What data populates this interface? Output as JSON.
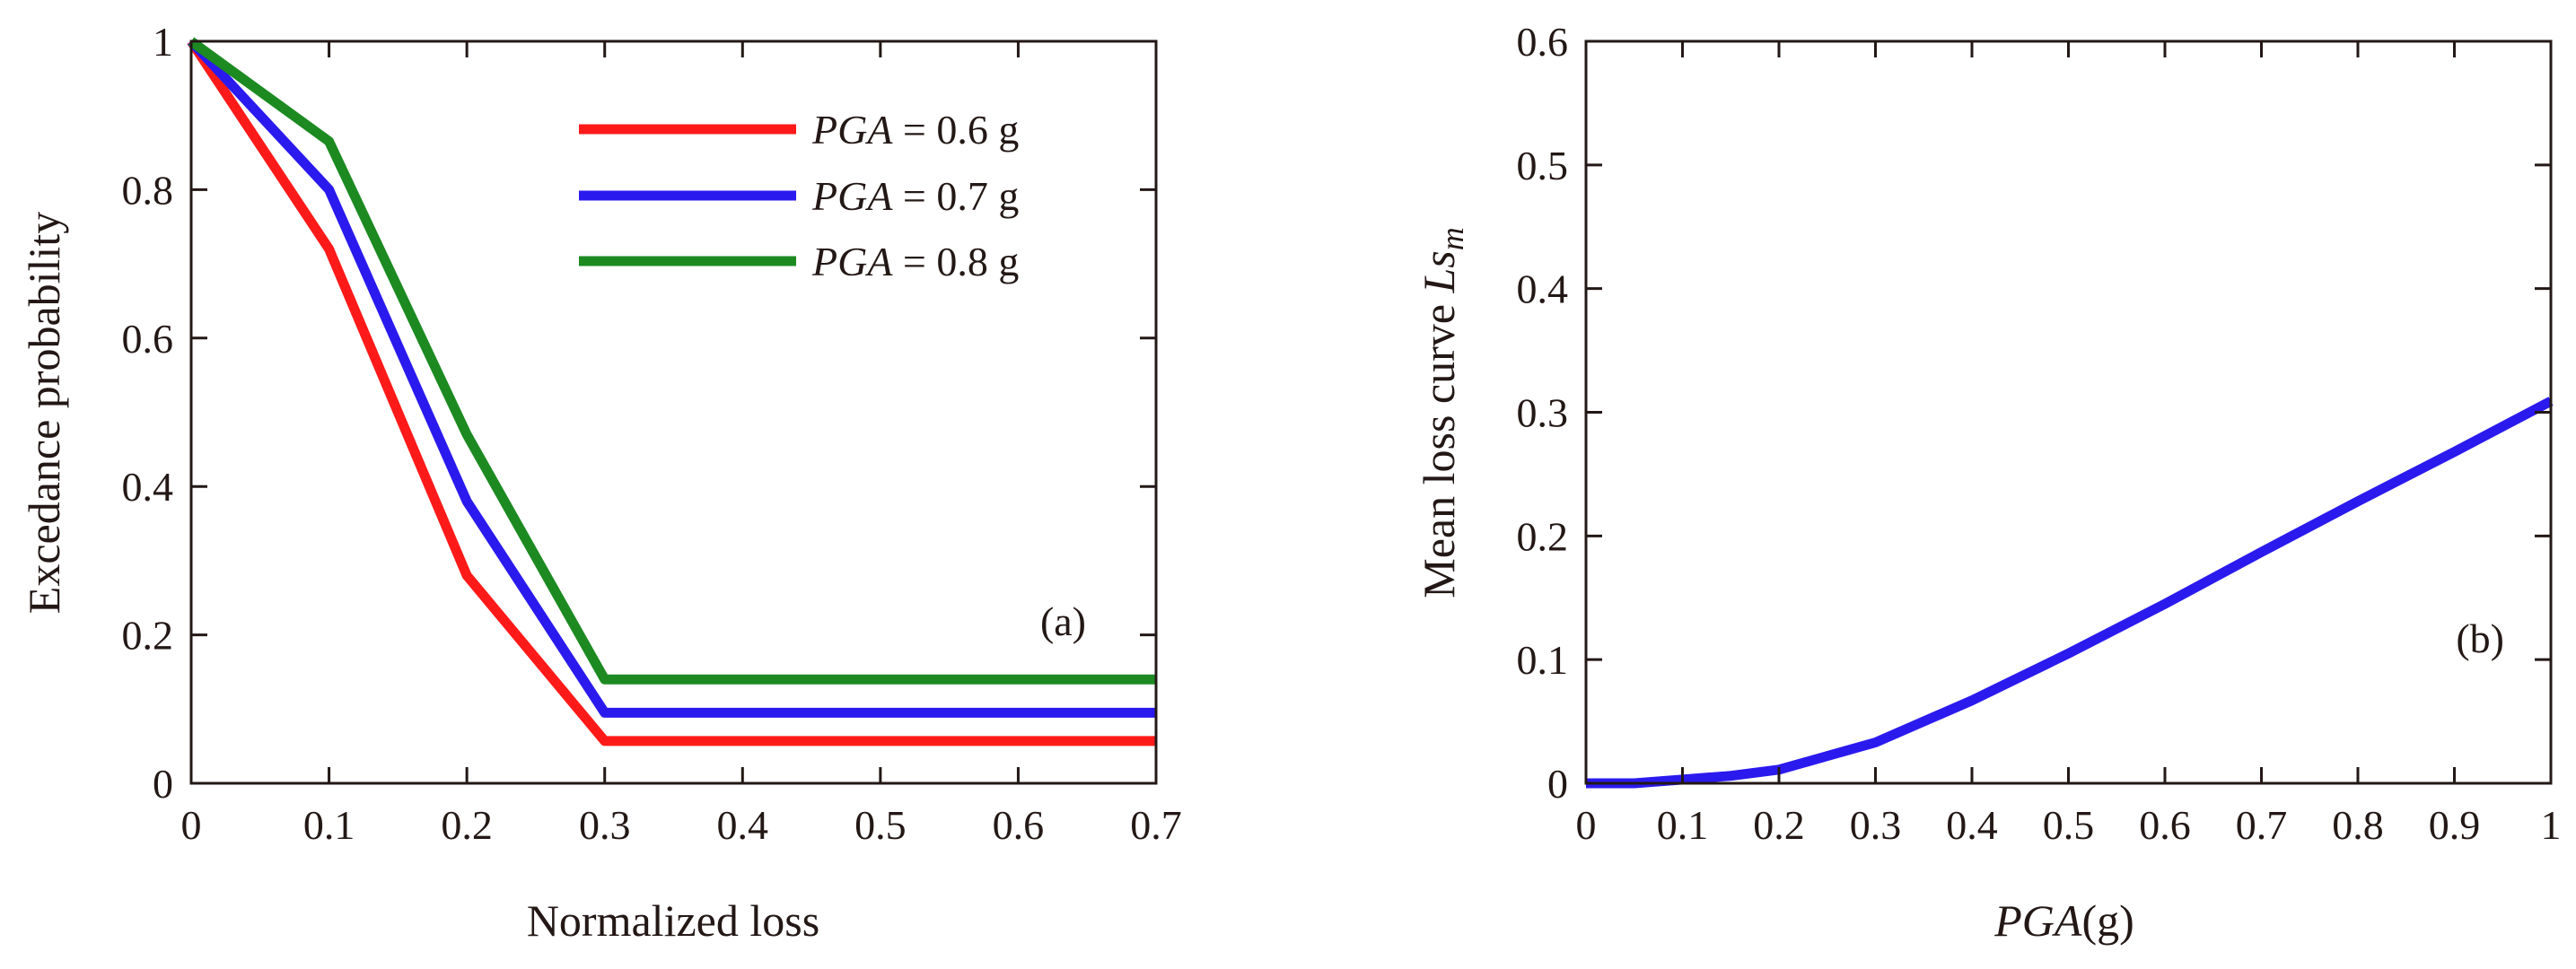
{
  "chart_data": [
    {
      "panel": "(a)",
      "type": "line",
      "title": "",
      "xlabel": "Normalized loss",
      "ylabel": "Excedance probability",
      "xlim": [
        0,
        0.7
      ],
      "ylim": [
        0,
        1
      ],
      "xticks": [
        "0",
        "0.1",
        "0.2",
        "0.3",
        "0.4",
        "0.5",
        "0.6",
        "0.7"
      ],
      "yticks": [
        "0",
        "0.2",
        "0.4",
        "0.6",
        "0.8",
        "1"
      ],
      "x": [
        0,
        0.1,
        0.2,
        0.3,
        0.7
      ],
      "legend_position": "top-right",
      "series": [
        {
          "name": "PGA = 0.6 g",
          "name_italic": "PGA",
          "name_rest": " = 0.6 g",
          "color": "#ff1a1a",
          "values": [
            1.0,
            0.72,
            0.28,
            0.057,
            0.057
          ]
        },
        {
          "name": "PGA = 0.7 g",
          "name_italic": "PGA",
          "name_rest": " = 0.7 g",
          "color": "#2b1aee",
          "values": [
            1.0,
            0.8,
            0.38,
            0.095,
            0.095
          ]
        },
        {
          "name": "PGA = 0.8 g",
          "name_italic": "PGA",
          "name_rest": " = 0.8 g",
          "color": "#1c8a21",
          "values": [
            1.0,
            0.865,
            0.47,
            0.14,
            0.14
          ]
        }
      ]
    },
    {
      "panel": "(b)",
      "type": "line",
      "title": "",
      "xlabel_italic": "PGA",
      "xlabel_rest": "(g)",
      "ylabel_plain": "Mean loss curve ",
      "ylabel_italic": "Ls",
      "ylabel_sub": "m",
      "xlim": [
        0,
        1
      ],
      "ylim": [
        0,
        0.6
      ],
      "xticks": [
        "0",
        "0.1",
        "0.2",
        "0.3",
        "0.4",
        "0.5",
        "0.6",
        "0.7",
        "0.8",
        "0.9",
        "1"
      ],
      "yticks": [
        "0",
        "0.1",
        "0.2",
        "0.3",
        "0.4",
        "0.5",
        "0.6"
      ],
      "series": [
        {
          "name": "Mean loss curve",
          "color": "#2b1aee",
          "x": [
            0,
            0.05,
            0.1,
            0.15,
            0.2,
            0.3,
            0.4,
            0.5,
            0.6,
            0.7,
            0.8,
            0.9,
            1.0
          ],
          "values": [
            0,
            0,
            0.003,
            0.006,
            0.011,
            0.033,
            0.067,
            0.105,
            0.145,
            0.187,
            0.228,
            0.268,
            0.309
          ]
        }
      ]
    }
  ]
}
